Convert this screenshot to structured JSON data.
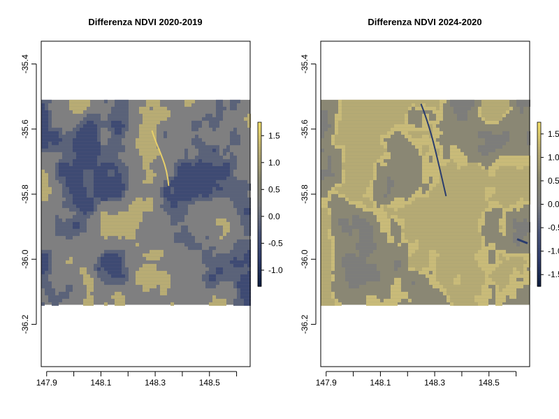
{
  "figure": {
    "background": "#ffffff"
  },
  "chart_data": [
    {
      "type": "heatmap",
      "title": "Differenza NDVI 2020-2019",
      "xlabel": "",
      "ylabel": "",
      "x_ticks": [
        "147.9",
        "148.1",
        "148.3",
        "148.5"
      ],
      "x_tick_values": [
        147.9,
        148.1,
        148.3,
        148.5
      ],
      "y_ticks": [
        "-35.4",
        "-35.6",
        "-35.8",
        "-36.0",
        "-36.2"
      ],
      "y_tick_values": [
        -35.4,
        -35.6,
        -35.8,
        -36.0,
        -36.2
      ],
      "xlim": [
        147.88,
        148.65
      ],
      "ylim": [
        -36.33,
        -35.33
      ],
      "raster_extent": {
        "x": [
          147.88,
          148.65
        ],
        "y": [
          -36.14,
          -35.51
        ]
      },
      "legend_ticks": [
        "1.5",
        "1.0",
        "0.5",
        "0.0",
        "-0.5",
        "-1.0"
      ],
      "legend_values": [
        1.5,
        1.0,
        0.5,
        0.0,
        -0.5,
        -1.0
      ],
      "value_range": [
        -1.3,
        1.75
      ],
      "grid": false,
      "legend_position": "right",
      "dominant_change": "negative",
      "palette": [
        "#0b1c3d",
        "#2e3b6b",
        "#4a5578",
        "#7b7d80",
        "#8c8a72",
        "#b9ad73",
        "#f1dd6a"
      ],
      "raster_colors": {
        "base": "#7f7f80",
        "low": "#3e4a73",
        "mid": "#5a6279",
        "high": "#b8ac74",
        "extreme": "#e7cf6a"
      }
    },
    {
      "type": "heatmap",
      "title": "Differenza NDVI 2024-2020",
      "xlabel": "",
      "ylabel": "",
      "x_ticks": [
        "147.9",
        "148.1",
        "148.3",
        "148.5"
      ],
      "x_tick_values": [
        147.9,
        148.1,
        148.3,
        148.5
      ],
      "y_ticks": [
        "-35.4",
        "-35.6",
        "-35.8",
        "-36.0",
        "-36.2"
      ],
      "y_tick_values": [
        -35.4,
        -35.6,
        -35.8,
        -36.0,
        -36.2
      ],
      "xlim": [
        147.88,
        148.65
      ],
      "ylim": [
        -36.33,
        -35.33
      ],
      "raster_extent": {
        "x": [
          147.88,
          148.65
        ],
        "y": [
          -36.14,
          -35.51
        ]
      },
      "legend_ticks": [
        "1.5",
        "1.0",
        "0.5",
        "0.0",
        "-0.5",
        "-1.0",
        "-1.5"
      ],
      "legend_values": [
        1.5,
        1.0,
        0.5,
        0.0,
        -0.5,
        -1.0,
        -1.5
      ],
      "value_range": [
        -1.75,
        1.75
      ],
      "grid": false,
      "legend_position": "right",
      "dominant_change": "positive",
      "palette": [
        "#0b1c3d",
        "#2e3b6b",
        "#4a5578",
        "#7b7d80",
        "#8c8a72",
        "#b9ad73",
        "#f1dd6a"
      ],
      "raster_colors": {
        "base": "#8a8774",
        "low": "#2a3c6e",
        "mid": "#7d7d7b",
        "high": "#b5aa74",
        "extreme": "#c9bb79"
      }
    }
  ]
}
